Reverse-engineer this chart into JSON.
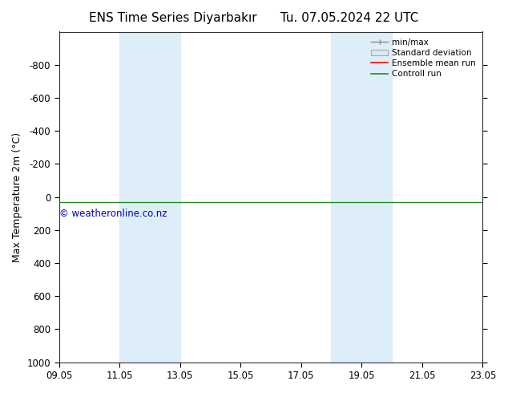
{
  "title": "ENS Time Series Diyarbakır",
  "title_right": "Tu. 07.05.2024 22 UTC",
  "ylabel": "Max Temperature 2m (°C)",
  "ylim_bottom": 1000,
  "ylim_top": -1000,
  "yticks": [
    -800,
    -600,
    -400,
    -200,
    0,
    200,
    400,
    600,
    800,
    1000
  ],
  "xlim_min": 0,
  "xlim_max": 14,
  "xtick_positions": [
    0,
    2,
    4,
    6,
    8,
    10,
    12,
    14
  ],
  "xtick_labels": [
    "09.05",
    "11.05",
    "13.05",
    "15.05",
    "17.05",
    "19.05",
    "21.05",
    "23.05"
  ],
  "shaded_regions": [
    {
      "x_start": 2.0,
      "x_end": 3.0,
      "color": "#ddeef8",
      "alpha": 1.0
    },
    {
      "x_start": 3.0,
      "x_end": 4.0,
      "color": "#ddeef8",
      "alpha": 1.0
    },
    {
      "x_start": 9.0,
      "x_end": 10.0,
      "color": "#ddeef8",
      "alpha": 1.0
    },
    {
      "x_start": 10.0,
      "x_end": 11.0,
      "color": "#ddeef8",
      "alpha": 1.0
    }
  ],
  "control_run_y": 30,
  "control_run_color": "#228B22",
  "ensemble_mean_color": "#ff0000",
  "watermark": "© weatheronline.co.nz",
  "watermark_color": "#0000cc",
  "bg_color": "#ffffff",
  "grid_color": "#cccccc",
  "title_fontsize": 11,
  "tick_fontsize": 8.5,
  "ylabel_fontsize": 9
}
